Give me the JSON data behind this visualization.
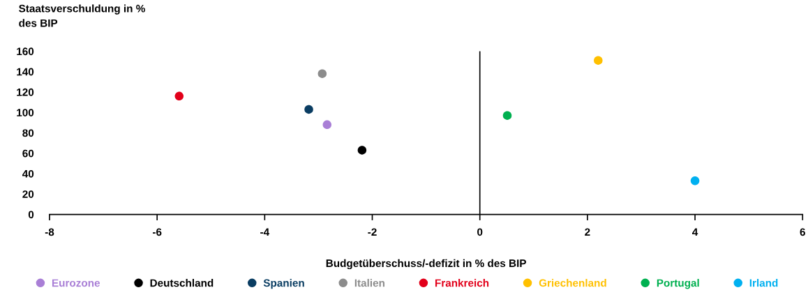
{
  "chart_data": {
    "type": "scatter",
    "ylabel": "Staatsverschuldung in %\ndes BIP",
    "xlabel": "Budgetüberschuss/-defizit in % des BIP",
    "xlim": [
      -8,
      6
    ],
    "xticks": [
      -8,
      -6,
      -4,
      -2,
      0,
      2,
      4,
      6
    ],
    "ylim": [
      0,
      160
    ],
    "yticks": [
      0,
      20,
      40,
      60,
      80,
      100,
      120,
      140,
      160
    ],
    "grid": false,
    "legend": "bottom",
    "marker": "circle",
    "ref_lines": [
      {
        "axis": "x",
        "value": 0,
        "color": "#000000"
      }
    ],
    "series": [
      {
        "name": "Eurozone",
        "color": "#a97fd6",
        "x": [
          -2.84
        ],
        "values": [
          88
        ]
      },
      {
        "name": "Deutschland",
        "color": "#000000",
        "x": [
          -2.19
        ],
        "values": [
          63
        ]
      },
      {
        "name": "Spanien",
        "color": "#0a3d62",
        "x": [
          -3.18
        ],
        "values": [
          103
        ]
      },
      {
        "name": "Italien",
        "color": "#8c8c8c",
        "x": [
          -2.93
        ],
        "values": [
          138
        ]
      },
      {
        "name": "Frankreich",
        "color": "#e2001a",
        "x": [
          -5.59
        ],
        "values": [
          116
        ]
      },
      {
        "name": "Griechenland",
        "color": "#ffc000",
        "x": [
          2.2
        ],
        "values": [
          151
        ]
      },
      {
        "name": "Portugal",
        "color": "#00b050",
        "x": [
          0.51
        ],
        "values": [
          97
        ]
      },
      {
        "name": "Irland",
        "color": "#00b0f0",
        "x": [
          4.0
        ],
        "values": [
          33
        ]
      }
    ]
  }
}
